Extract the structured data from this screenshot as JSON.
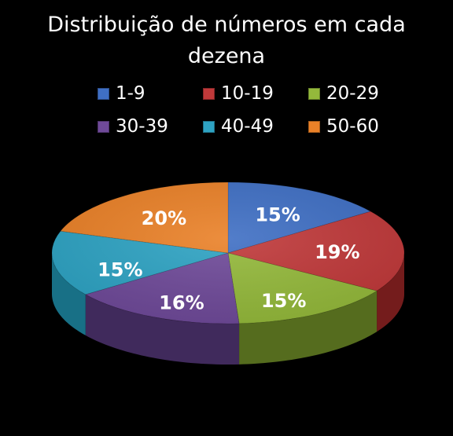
{
  "chart_data": {
    "type": "pie",
    "title_lines": [
      "Distribuição de números em cada",
      "dezena"
    ],
    "categories": [
      "1-9",
      "10-19",
      "20-29",
      "30-39",
      "40-49",
      "50-60"
    ],
    "values": [
      15,
      19,
      15,
      16,
      15,
      20
    ],
    "data_labels": [
      "15%",
      "19%",
      "15%",
      "16%",
      "15%",
      "20%"
    ],
    "colors": [
      "#3f6fc4",
      "#c0393a",
      "#94b93b",
      "#6f4a99",
      "#2ea3c3",
      "#ea8128"
    ],
    "side_colors": [
      "#22417a",
      "#741c1c",
      "#556c1e",
      "#402a5c",
      "#187086",
      "#9a5212"
    ],
    "legend_position": "top",
    "style": "3d-pie",
    "start_angle_deg": 0,
    "direction": "clockwise"
  }
}
